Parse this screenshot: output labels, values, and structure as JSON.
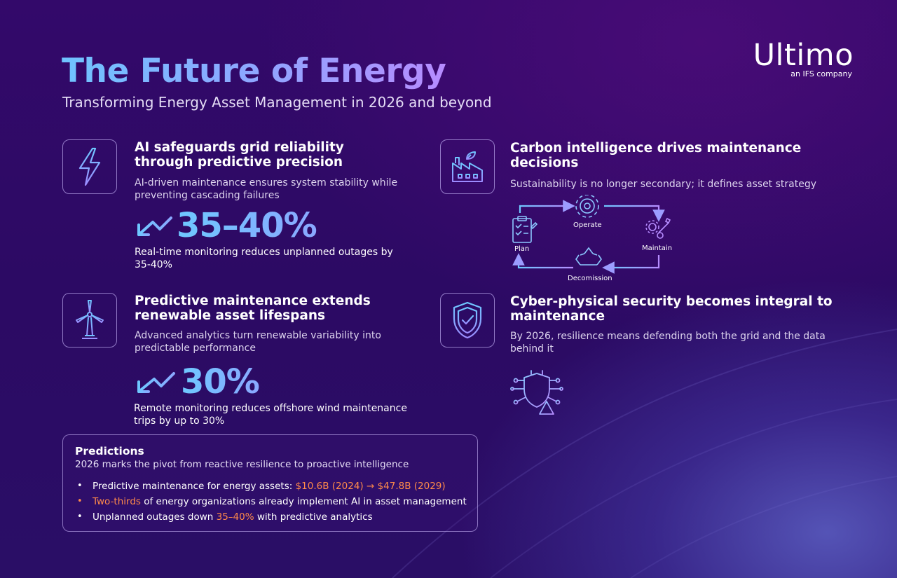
{
  "header": {
    "title": "The Future of Energy",
    "subtitle": "Transforming Energy Asset Management in 2026 and beyond"
  },
  "logo": {
    "name": "Ultimo",
    "tagline": "an IFS company"
  },
  "cards": {
    "grid": {
      "icon": "lightning-bolt-icon",
      "title": "AI safeguards grid reliability through predictive precision",
      "description": "AI-driven maintenance ensures system stability while preventing cascading failures",
      "stat_icon": "trend-down-arrow-icon",
      "stat_value": "35–40%",
      "stat_caption": "Real-time monitoring reduces unplanned outages by 35-40%"
    },
    "carbon": {
      "icon": "factory-leaf-icon",
      "title": "Carbon intelligence drives maintenance decisions",
      "description": "Sustainability is no longer secondary; it defines asset strategy",
      "cycle": {
        "plan": "Plan",
        "operate": "Operate",
        "maintain": "Maintain",
        "decommission": "Decomission"
      }
    },
    "renewable": {
      "icon": "wind-turbine-icon",
      "title": "Predictive maintenance extends renewable asset lifespans",
      "description": "Advanced analytics turn renewable variability into predictable performance",
      "stat_icon": "trend-down-arrow-icon",
      "stat_value": "30%",
      "stat_caption": "Remote monitoring reduces offshore wind maintenance trips by up to 30%"
    },
    "security": {
      "icon": "shield-check-icon",
      "title": "Cyber-physical security becomes integral to maintenance",
      "description": "By 2026, resilience means defending both the grid and the data behind it",
      "illustration": "circuit-shield-warning-icon"
    }
  },
  "predictions": {
    "title": "Predictions",
    "subtitle": "2026 marks the pivot from reactive resilience to proactive intelligence",
    "items": [
      {
        "before": "Predictive maintenance for energy assets: ",
        "highlight": "$10.6B (2024) → $47.8B (2029)",
        "after": ""
      },
      {
        "before": "",
        "highlight": "Two-thirds",
        "after": " of energy organizations already implement AI in asset management"
      },
      {
        "before": "Unplanned outages down ",
        "highlight": "35–40%",
        "after": " with predictive analytics"
      }
    ]
  },
  "colors": {
    "background": "#2c0a64",
    "accent_blue": "#6ec8ff",
    "accent_purple": "#b68cff",
    "highlight_orange": "#ff8a4a"
  }
}
